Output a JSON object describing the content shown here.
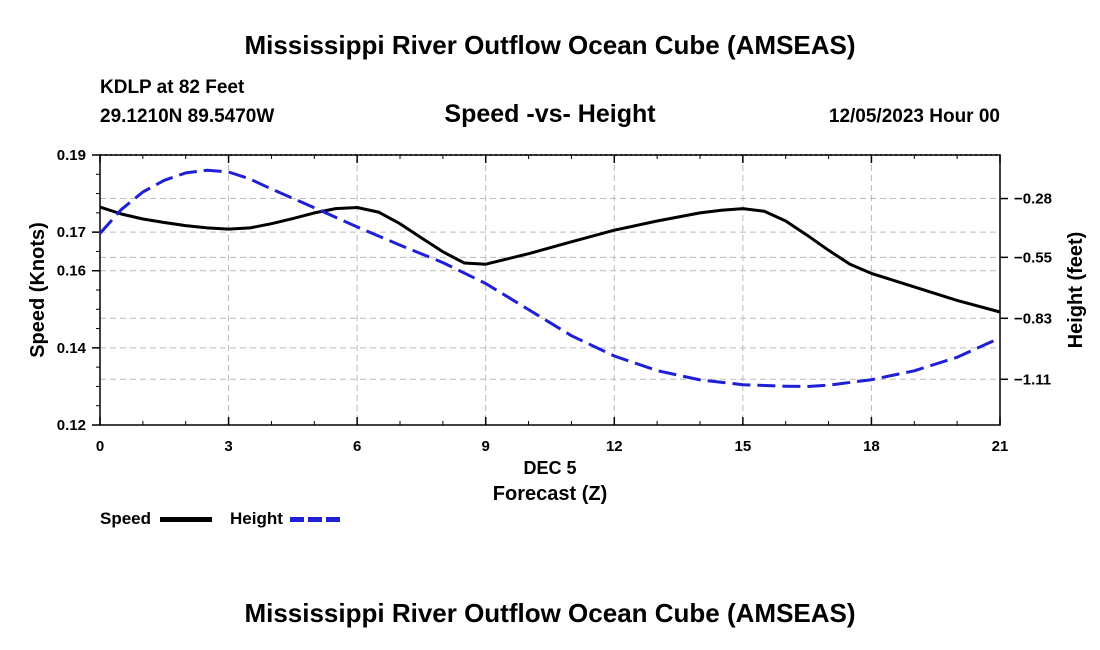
{
  "header": {
    "title": "Mississippi River Outflow Ocean Cube (AMSEAS)",
    "station": "KDLP at 82 Feet",
    "coords": "29.1210N  89.5470W",
    "subtitle": "Speed -vs- Height",
    "datetime": "12/05/2023 Hour 00"
  },
  "footer": {
    "title": "Mississippi River Outflow Ocean Cube (AMSEAS)"
  },
  "legend": {
    "speed": "Speed",
    "height": "Height"
  },
  "colors": {
    "speed": "#000000",
    "height": "#1f1fd6",
    "grid": "#bbbbbb"
  },
  "chart_data": {
    "type": "line",
    "title": "Speed -vs- Height",
    "xlabel": "Forecast (Z)",
    "xlabel_top": "DEC 5",
    "xlim": [
      0,
      21
    ],
    "x_ticks": [
      0,
      3,
      6,
      9,
      12,
      15,
      18,
      21
    ],
    "y_left": {
      "label": "Speed (Knots)",
      "lim": [
        0.12,
        0.19
      ],
      "ticks": [
        0.12,
        0.14,
        0.16,
        0.17,
        0.19
      ],
      "tick_labels": [
        "0.12",
        "0.14",
        "0.16",
        "0.17",
        "0.19"
      ]
    },
    "y_right": {
      "label": "Height (feet)",
      "lim": [
        -1.32,
        -0.08
      ],
      "ticks": [
        -0.28,
        -0.55,
        -0.83,
        -1.11
      ],
      "tick_labels": [
        "−0.28",
        "−0.55",
        "−0.83",
        "−1.11"
      ]
    },
    "grid": true,
    "series": [
      {
        "name": "Speed",
        "axis": "left",
        "style": "solid",
        "x": [
          0,
          0.5,
          1,
          1.5,
          2,
          2.5,
          3,
          3.5,
          4,
          4.5,
          5,
          5.5,
          6,
          6.5,
          7,
          7.5,
          8,
          8.5,
          9,
          10,
          11,
          12,
          13,
          14,
          14.5,
          15,
          15.5,
          16,
          16.5,
          17,
          17.5,
          18,
          19,
          20,
          21
        ],
        "y": [
          0.1765,
          0.1747,
          0.1734,
          0.1725,
          0.1717,
          0.1711,
          0.1708,
          0.1711,
          0.1722,
          0.1735,
          0.175,
          0.1761,
          0.1764,
          0.1752,
          0.1722,
          0.1685,
          0.1649,
          0.162,
          0.1617,
          0.1644,
          0.1675,
          0.1705,
          0.1729,
          0.175,
          0.1757,
          0.1761,
          0.1754,
          0.1729,
          0.1692,
          0.1653,
          0.1617,
          0.1593,
          0.1558,
          0.1523,
          0.1493
        ]
      },
      {
        "name": "Height",
        "axis": "right",
        "style": "dashed",
        "x": [
          0,
          0.5,
          1,
          1.5,
          2,
          2.5,
          3,
          3.5,
          4,
          5,
          6,
          7,
          8,
          9,
          10,
          11,
          12,
          13,
          14,
          15,
          16,
          16.5,
          17,
          18,
          19,
          20,
          21
        ],
        "y": [
          -0.44,
          -0.33,
          -0.25,
          -0.196,
          -0.162,
          -0.15,
          -0.158,
          -0.19,
          -0.236,
          -0.322,
          -0.41,
          -0.494,
          -0.574,
          -0.67,
          -0.79,
          -0.91,
          -1.003,
          -1.07,
          -1.113,
          -1.135,
          -1.142,
          -1.143,
          -1.137,
          -1.112,
          -1.071,
          -1.009,
          -0.92
        ]
      }
    ]
  }
}
